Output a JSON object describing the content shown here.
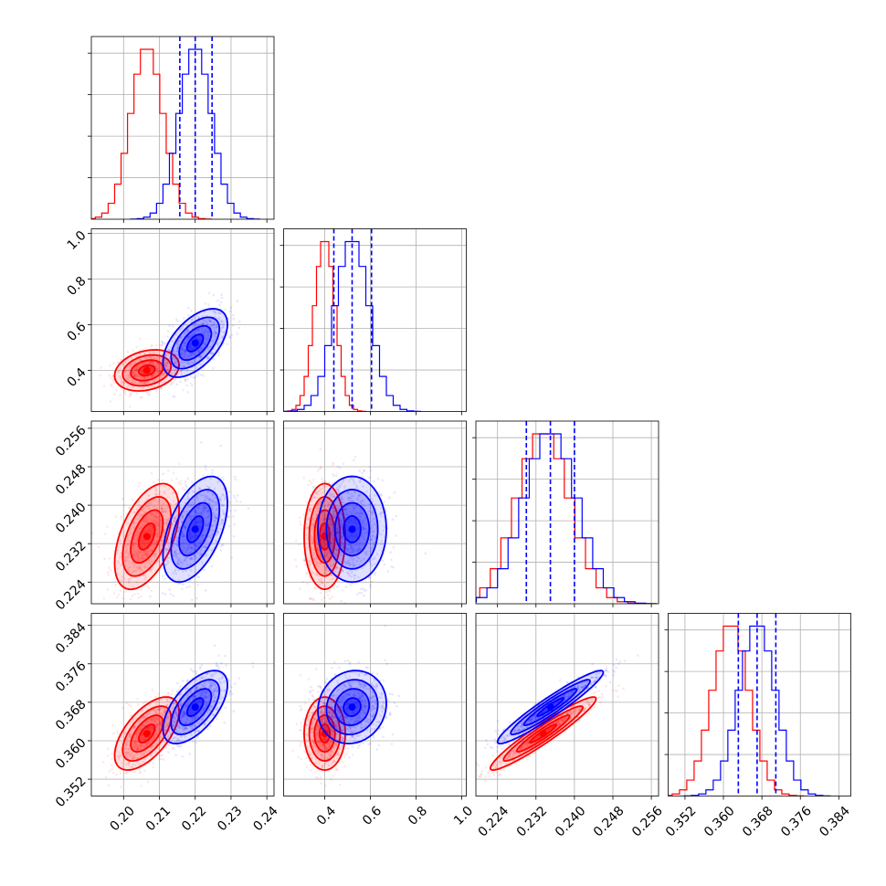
{
  "colors": {
    "red": "#ff0000",
    "blue": "#0000ff"
  },
  "chart_data": {
    "type": "corner",
    "series": [
      {
        "color": "red",
        "means": [
          0.2065,
          0.4,
          0.2335,
          0.3615
        ],
        "sds": [
          0.0045,
          0.045,
          0.0055,
          0.0038
        ]
      },
      {
        "color": "blue",
        "means": [
          0.22,
          0.52,
          0.235,
          0.367
        ],
        "sds": [
          0.0045,
          0.075,
          0.0055,
          0.0038
        ]
      }
    ],
    "correlations": [
      {
        "pair": [
          1,
          0
        ],
        "red": 0.25,
        "blue": 0.55
      },
      {
        "pair": [
          2,
          0
        ],
        "red": 0.5,
        "blue": 0.5
      },
      {
        "pair": [
          3,
          0
        ],
        "red": 0.6,
        "blue": 0.6
      },
      {
        "pair": [
          2,
          1
        ],
        "red": 0.0,
        "blue": 0.0
      },
      {
        "pair": [
          3,
          1
        ],
        "red": 0.0,
        "blue": 0.1
      },
      {
        "pair": [
          3,
          2
        ],
        "red": 0.95,
        "blue": 0.95
      }
    ],
    "quantile_lines": [
      [
        0.2157,
        0.22,
        0.2247
      ],
      [
        0.44,
        0.52,
        0.605
      ],
      [
        0.23,
        0.235,
        0.24
      ],
      [
        0.3631,
        0.367,
        0.3709
      ]
    ],
    "axes": [
      {
        "range": [
          0.191,
          0.242
        ],
        "ticks": [
          0.2,
          0.21,
          0.22,
          0.23,
          0.24
        ],
        "tick_labels": [
          "0.20",
          "0.21",
          "0.22",
          "0.23",
          "0.24"
        ]
      },
      {
        "range": [
          0.22,
          1.02
        ],
        "ticks": [
          0.4,
          0.6,
          0.8,
          1.0
        ],
        "tick_labels": [
          "0.4",
          "0.6",
          "0.8",
          "1.0"
        ]
      },
      {
        "range": [
          0.2195,
          0.2575
        ],
        "ticks": [
          0.224,
          0.232,
          0.24,
          0.248,
          0.256
        ],
        "tick_labels": [
          "0.224",
          "0.232",
          "0.240",
          "0.248",
          "0.256"
        ]
      },
      {
        "range": [
          0.3485,
          0.3865
        ],
        "ticks": [
          0.352,
          0.36,
          0.368,
          0.376,
          0.384
        ],
        "tick_labels": [
          "0.352",
          "0.360",
          "0.368",
          "0.376",
          "0.384"
        ]
      }
    ],
    "grid": true
  }
}
